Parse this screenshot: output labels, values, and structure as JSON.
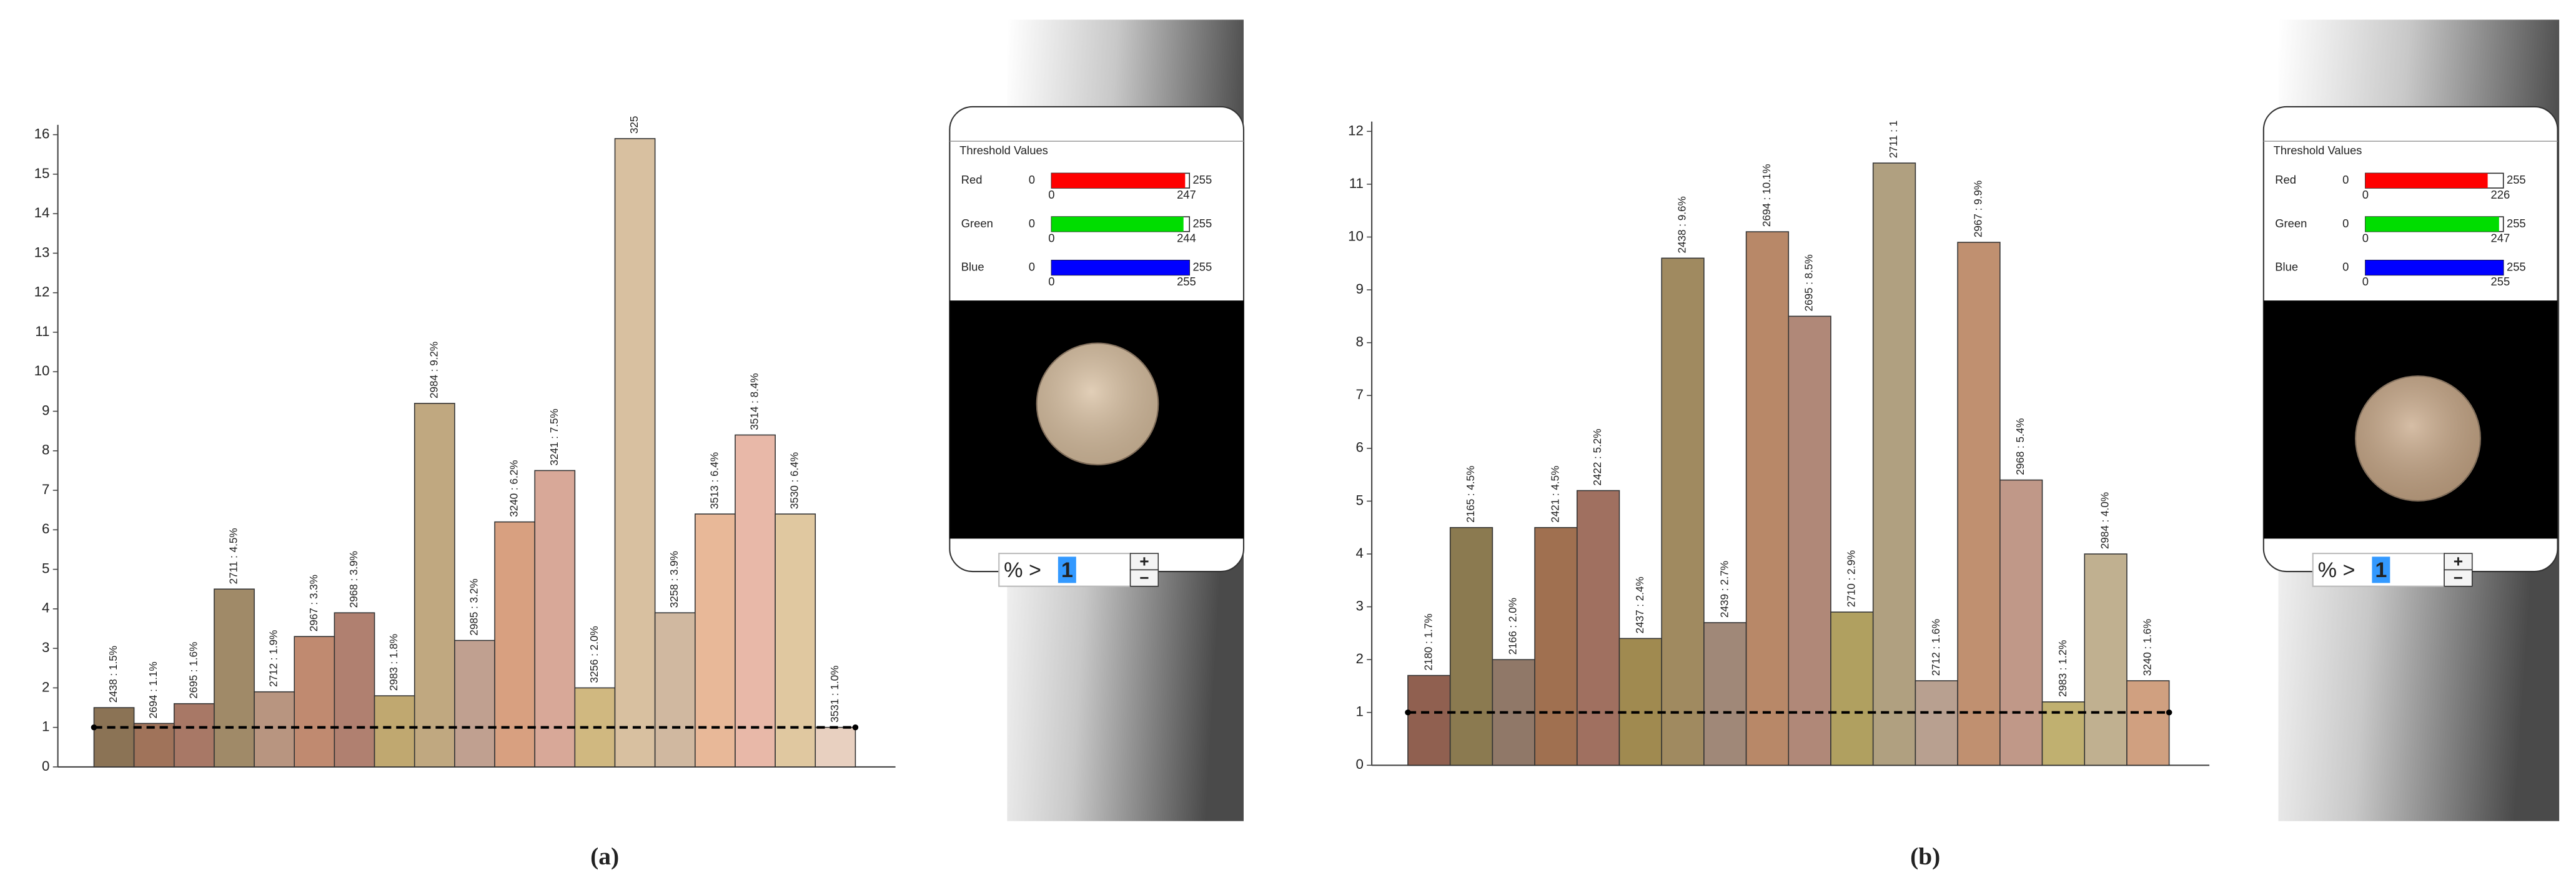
{
  "chart_data": [
    {
      "type": "bar",
      "caption": "(a)",
      "ylim": [
        0,
        16
      ],
      "yticks": [
        0,
        1,
        2,
        3,
        4,
        5,
        6,
        7,
        8,
        9,
        10,
        11,
        12,
        13,
        14,
        15,
        16
      ],
      "threshold": 1,
      "values": [
        1.5,
        1.1,
        1.6,
        4.5,
        1.9,
        3.3,
        3.9,
        1.8,
        9.2,
        3.2,
        6.2,
        7.5,
        2.0,
        15.9,
        3.9,
        6.4,
        8.4,
        6.4,
        1.0
      ],
      "value_labels": [
        "2438 : 1.5%",
        "2694 : 1.1%",
        "2695 : 1.6%",
        "2711 : 4.5%",
        "2712 : 1.9%",
        "2967 : 3.3%",
        "2968 : 3.9%",
        "2983 : 1.8%",
        "2984 : 9.2%",
        "2985 : 3.2%",
        "3240 : 6.2%",
        "3241 : 7.5%",
        "3256 : 2.0%",
        "325",
        "3258 : 3.9%",
        "3513 : 6.4%",
        "3514 : 8.4%",
        "3530 : 6.4%",
        "3531 : 1.0%"
      ],
      "colors": [
        "#8b7355",
        "#a0735a",
        "#a87866",
        "#a08a68",
        "#b89580",
        "#c08a70",
        "#b08070",
        "#c0a870",
        "#c0a880",
        "#c0a090",
        "#d8a080",
        "#d8a898",
        "#d0b880",
        "#d8c0a0",
        "#d0b8a0",
        "#e8b898",
        "#e8b8a8",
        "#e0c8a0",
        "#e8d0c0"
      ]
    },
    {
      "type": "bar",
      "caption": "(b)",
      "ylim": [
        0,
        12
      ],
      "yticks": [
        0,
        1,
        2,
        3,
        4,
        5,
        6,
        7,
        8,
        9,
        10,
        11,
        12
      ],
      "threshold": 1,
      "values": [
        1.7,
        4.5,
        2.0,
        4.5,
        5.2,
        2.4,
        9.6,
        2.7,
        10.1,
        8.5,
        2.9,
        11.4,
        1.6,
        9.9,
        5.4,
        1.2,
        4.0,
        1.6
      ],
      "value_labels": [
        "2180 : 1.7%",
        "2165 : 4.5%",
        "2166 : 2.0%",
        "2421 : 4.5%",
        "2422 : 5.2%",
        "2437 : 2.4%",
        "2438 : 9.6%",
        "2439 : 2.7%",
        "2694 : 10.1%",
        "2695 : 8.5%",
        "2710 : 2.9%",
        "2711 : 1",
        "2712 : 1.6%",
        "2967 : 9.9%",
        "2968 : 5.4%",
        "2983 : 1.2%",
        "2984 : 4.0%",
        "3240 : 1.6%"
      ],
      "colors": [
        "#906050",
        "#8b7a50",
        "#907868",
        "#a07050",
        "#a07060",
        "#a08a50",
        "#a08a60",
        "#a08878",
        "#b88868",
        "#b08878",
        "#b0a060",
        "#b0a080",
        "#b8a090",
        "#c09070",
        "#c09888",
        "#c0b070",
        "#c0b090",
        "#d0a080"
      ]
    }
  ],
  "panels": [
    {
      "title": "Threshold Values",
      "input_prefix": "% >",
      "input_value": 1,
      "buttons": [
        "+",
        "−"
      ],
      "sample_color": "#d8bfa0",
      "channels": [
        {
          "name": "Red",
          "color": "#ff0000",
          "min": 0,
          "max": 255,
          "low": 0,
          "high": 247
        },
        {
          "name": "Green",
          "color": "#00dd00",
          "min": 0,
          "max": 255,
          "low": 0,
          "high": 244
        },
        {
          "name": "Blue",
          "color": "#0000ff",
          "min": 0,
          "max": 255,
          "low": 0,
          "high": 255
        }
      ]
    },
    {
      "title": "Threshold Values",
      "input_prefix": "% >",
      "input_value": 1,
      "buttons": [
        "+",
        "−"
      ],
      "sample_color": "#c8a888",
      "channels": [
        {
          "name": "Red",
          "color": "#ff0000",
          "min": 0,
          "max": 255,
          "low": 0,
          "high": 226
        },
        {
          "name": "Green",
          "color": "#00dd00",
          "min": 0,
          "max": 255,
          "low": 0,
          "high": 247
        },
        {
          "name": "Blue",
          "color": "#0000ff",
          "min": 0,
          "max": 255,
          "low": 0,
          "high": 255
        }
      ]
    }
  ]
}
